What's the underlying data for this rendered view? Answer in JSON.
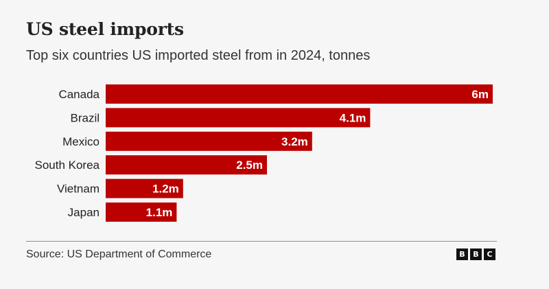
{
  "header": {
    "title": "US steel imports",
    "subtitle": "Top six countries US imported steel from in 2024, tonnes"
  },
  "footer": {
    "source": "Source: US Department of Commerce",
    "logo_letters": [
      "B",
      "B",
      "C"
    ]
  },
  "colors": {
    "bar": "#bb0000",
    "bar_label": "#ffffff",
    "category_label": "#222222",
    "background": "#f6f6f6"
  },
  "chart_data": {
    "type": "bar",
    "orientation": "horizontal",
    "title": "US steel imports",
    "subtitle": "Top six countries US imported steel from in 2024, tonnes",
    "categories": [
      "Canada",
      "Brazil",
      "Mexico",
      "South Korea",
      "Vietnam",
      "Japan"
    ],
    "values": [
      6.0,
      4.1,
      3.2,
      2.5,
      1.2,
      1.1
    ],
    "value_labels": [
      "6m",
      "4.1m",
      "3.2m",
      "2.5m",
      "1.2m",
      "1.1m"
    ],
    "unit": "tonnes",
    "xlim": [
      0,
      6
    ],
    "grid": false,
    "legend": "none"
  }
}
